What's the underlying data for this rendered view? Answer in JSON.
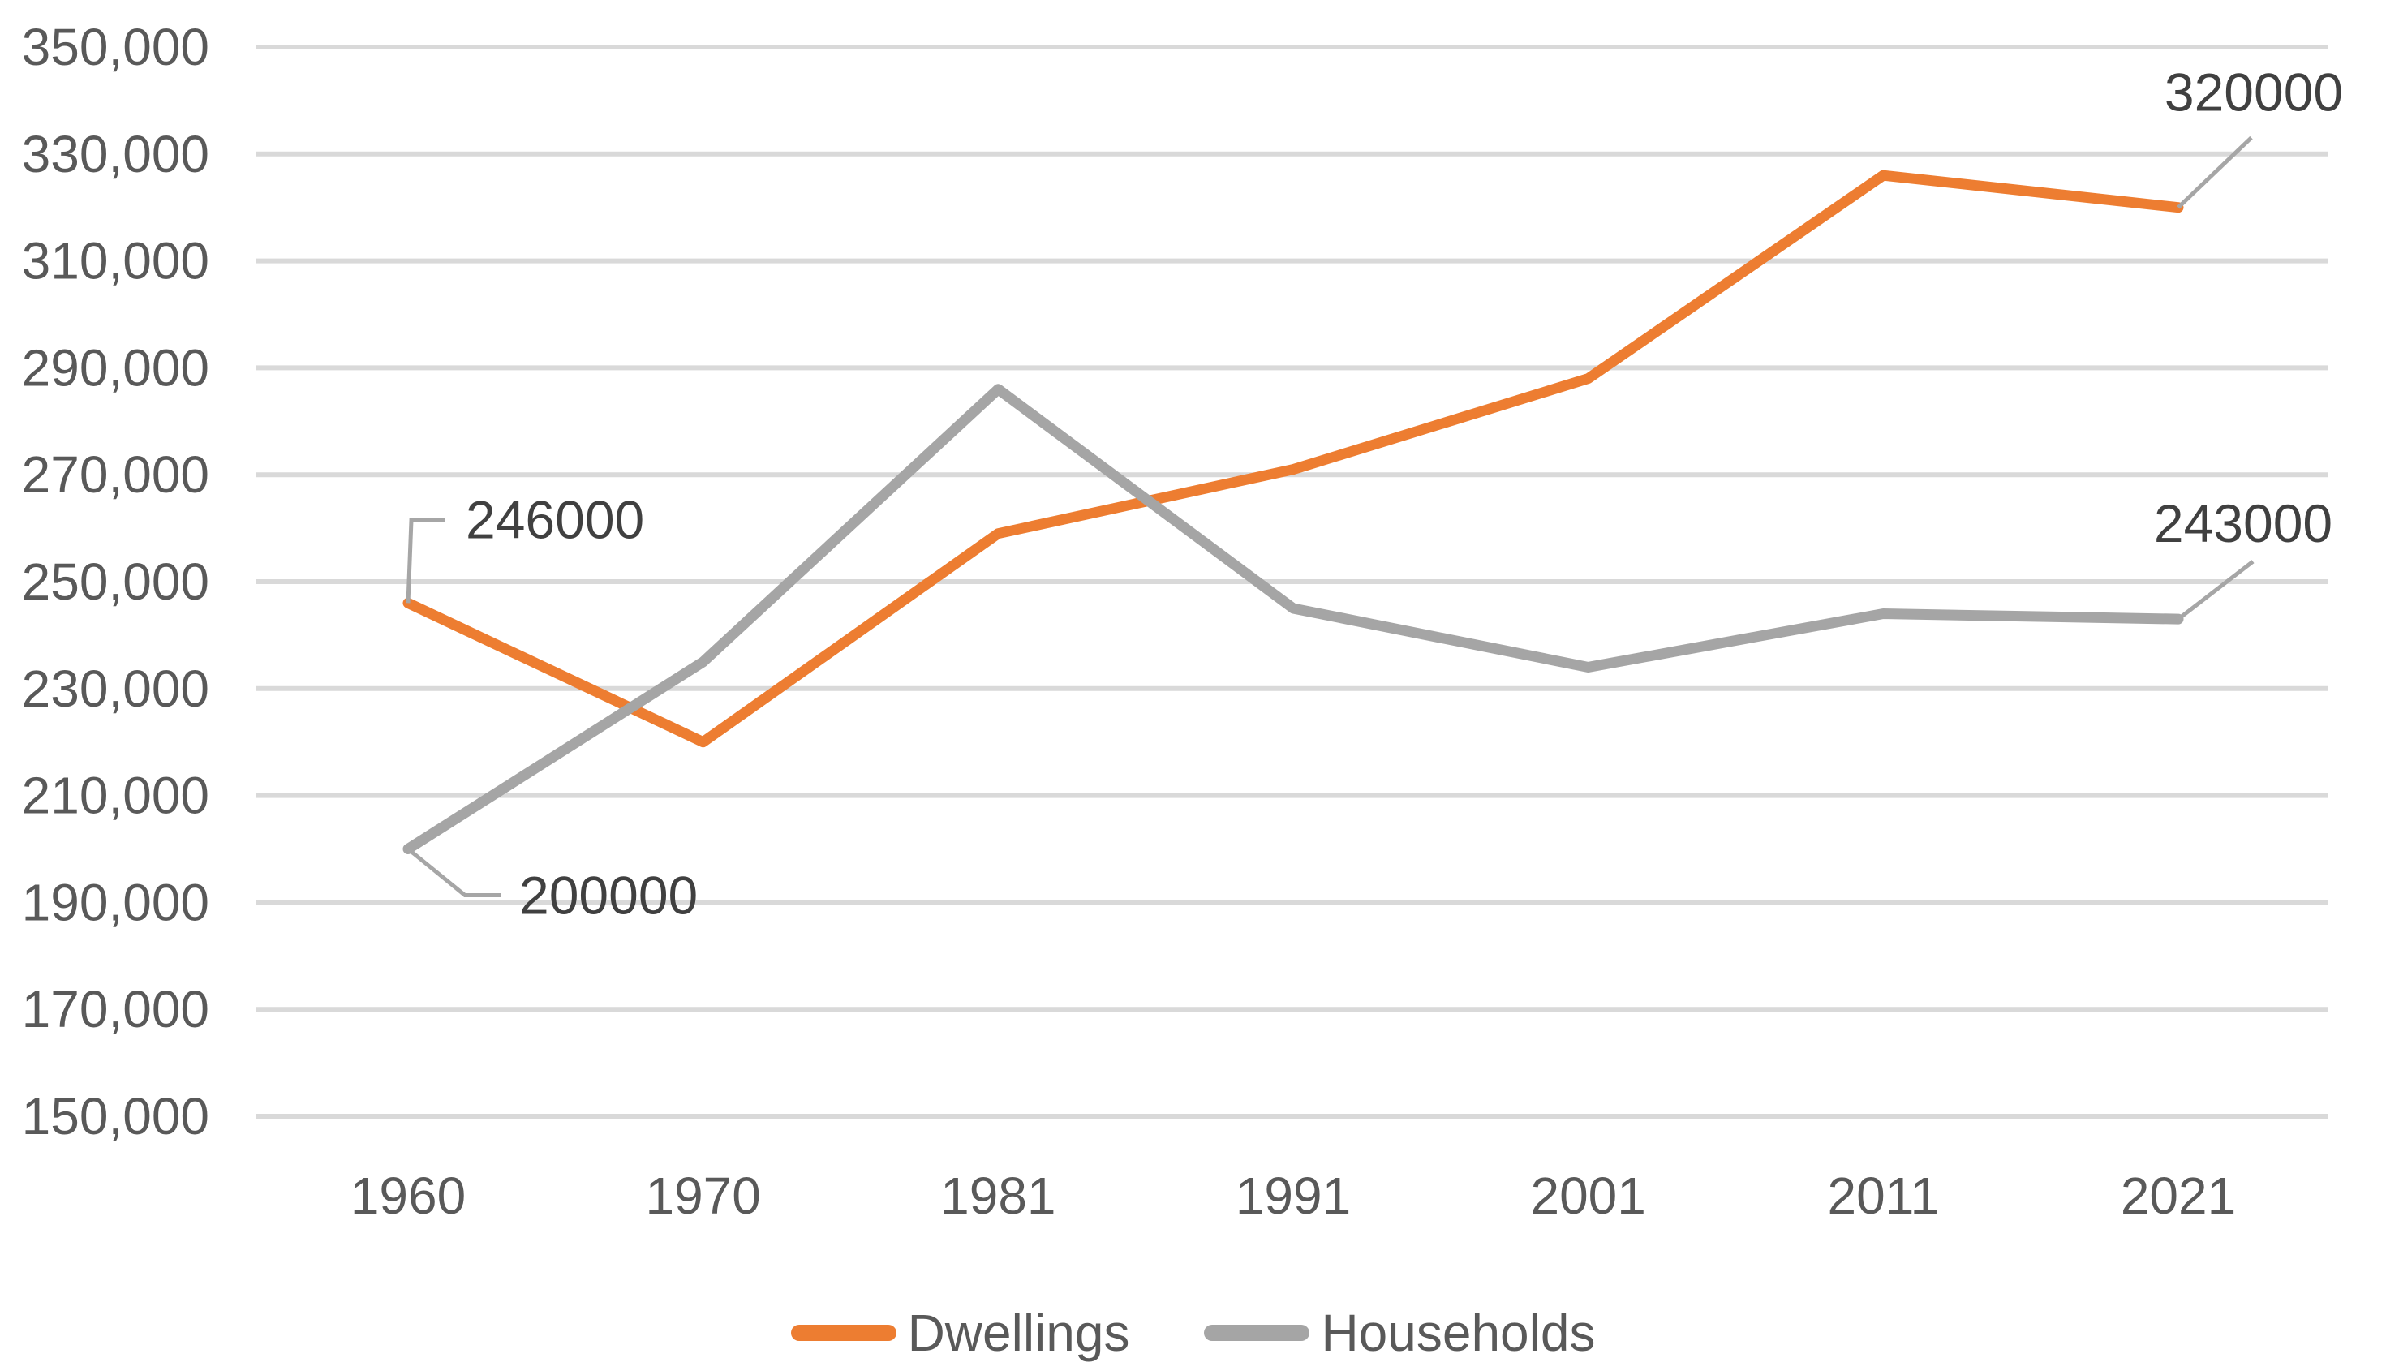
{
  "chart_data": {
    "type": "line",
    "title": "",
    "xlabel": "",
    "ylabel": "",
    "categories": [
      "1960",
      "1970",
      "1981",
      "1991",
      "2001",
      "2011",
      "2021"
    ],
    "series": [
      {
        "name": "Dwellings",
        "color": "#ED7D31",
        "values": [
          246000,
          220000,
          259000,
          271000,
          288000,
          326000,
          320000
        ]
      },
      {
        "name": "Households",
        "color": "#A5A5A5",
        "values": [
          200000,
          235000,
          286000,
          245000,
          234000,
          244000,
          243000
        ]
      }
    ],
    "ylim": [
      150000,
      350000
    ],
    "ytick_step": 20000,
    "ytick_labels": [
      "150,000",
      "170,000",
      "190,000",
      "210,000",
      "230,000",
      "250,000",
      "270,000",
      "290,000",
      "310,000",
      "330,000",
      "350,000"
    ],
    "grid": true,
    "legend_position": "bottom",
    "data_labels": [
      {
        "id": "dwellings-1960",
        "series": "Dwellings",
        "series_index": 0,
        "category_index": 0,
        "text": "246000"
      },
      {
        "id": "households-1960",
        "series": "Households",
        "series_index": 1,
        "category_index": 0,
        "text": "200000"
      },
      {
        "id": "dwellings-2021",
        "series": "Dwellings",
        "series_index": 0,
        "category_index": 6,
        "text": "320000"
      },
      {
        "id": "households-2021",
        "series": "Households",
        "series_index": 1,
        "category_index": 6,
        "text": "243000"
      }
    ]
  },
  "legend": {
    "items": [
      {
        "label": "Dwellings",
        "color": "#ED7D31"
      },
      {
        "label": "Households",
        "color": "#A5A5A5"
      }
    ]
  },
  "colors": {
    "background": "#FFFFFF",
    "gridline": "#D9D9D9",
    "tick_text": "#595959",
    "data_label_text": "#404040",
    "leader_line": "#A6A6A6",
    "dwellings": "#ED7D31",
    "households": "#A5A5A5"
  }
}
